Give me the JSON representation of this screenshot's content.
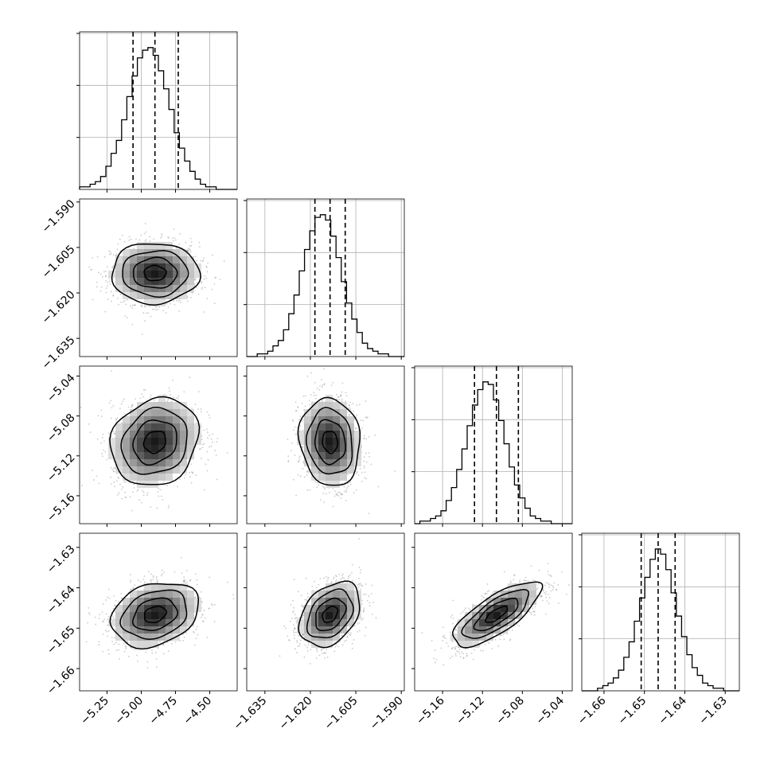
{
  "figure": {
    "type": "corner-plot",
    "n_params": 4,
    "grid": true
  },
  "colors": {
    "hist": "#000000",
    "grid": "#b0b0b0",
    "frame": "#000000",
    "scatter": "#8c8c8c",
    "density_dark": "#000000"
  },
  "chart_data": {
    "type": "corner",
    "params": [
      {
        "range": [
          -5.45,
          -4.3
        ],
        "ticks": [
          -5.25,
          -5.0,
          -4.75,
          -4.5
        ],
        "tick_labels": [
          "−5.25",
          "−5.00",
          "−4.75",
          "−4.50"
        ],
        "median": -4.9,
        "q16": -5.06,
        "q84": -4.73,
        "sigma": 0.16
      },
      {
        "range": [
          -1.641,
          -1.589
        ],
        "ticks": [
          -1.635,
          -1.62,
          -1.605,
          -1.59
        ],
        "tick_labels": [
          "−1.635",
          "−1.620",
          "−1.605",
          "−1.590"
        ],
        "median": -1.6135,
        "q16": -1.6185,
        "q84": -1.6085,
        "sigma": 0.005
      },
      {
        "range": [
          -5.188,
          -5.03
        ],
        "ticks": [
          -5.16,
          -5.12,
          -5.08,
          -5.04
        ],
        "tick_labels": [
          "−5.16",
          "−5.12",
          "−5.08",
          "−5.04"
        ],
        "median": -5.106,
        "q16": -5.128,
        "q84": -5.084,
        "sigma": 0.022
      },
      {
        "range": [
          -1.6655,
          -1.6265
        ],
        "ticks": [
          -1.66,
          -1.65,
          -1.64,
          -1.63
        ],
        "tick_labels": [
          "−1.66",
          "−1.65",
          "−1.64",
          "−1.63"
        ],
        "median": -1.6466,
        "q16": -1.6508,
        "q84": -1.6424,
        "sigma": 0.004
      }
    ],
    "diagonal_histograms": [
      {
        "param": 0,
        "bins": 30,
        "counts": [
          1,
          1,
          2,
          3,
          5,
          9,
          14,
          19,
          27,
          36,
          44,
          51,
          54,
          55,
          52,
          46,
          39,
          31,
          22,
          16,
          11,
          7,
          4,
          2,
          1,
          1,
          0,
          0,
          0,
          0
        ]
      },
      {
        "param": 1,
        "bins": 30,
        "counts": [
          0,
          0,
          1,
          1,
          2,
          4,
          6,
          10,
          16,
          23,
          32,
          40,
          47,
          52,
          53,
          51,
          45,
          37,
          28,
          20,
          14,
          9,
          5,
          3,
          2,
          1,
          1,
          0,
          0,
          0
        ]
      },
      {
        "param": 2,
        "bins": 30,
        "counts": [
          0,
          1,
          1,
          2,
          3,
          5,
          9,
          14,
          21,
          29,
          38,
          46,
          52,
          55,
          54,
          48,
          40,
          31,
          22,
          15,
          10,
          6,
          3,
          2,
          1,
          1,
          0,
          0,
          0,
          0
        ]
      },
      {
        "param": 3,
        "bins": 30,
        "counts": [
          0,
          0,
          0,
          1,
          2,
          3,
          5,
          8,
          13,
          19,
          27,
          36,
          44,
          51,
          55,
          53,
          47,
          38,
          29,
          21,
          14,
          9,
          6,
          3,
          2,
          1,
          1,
          0,
          0,
          0
        ]
      }
    ],
    "pairs": [
      {
        "x": 0,
        "y": 1,
        "rho": 0.0
      },
      {
        "x": 0,
        "y": 2,
        "rho": 0.15
      },
      {
        "x": 1,
        "y": 2,
        "rho": -0.1
      },
      {
        "x": 0,
        "y": 3,
        "rho": 0.25
      },
      {
        "x": 1,
        "y": 3,
        "rho": 0.35
      },
      {
        "x": 2,
        "y": 3,
        "rho": 0.75
      }
    ],
    "contour_levels_sigma": [
      0.5,
      1.0,
      1.5,
      2.0
    ],
    "median_line": "dashed"
  }
}
